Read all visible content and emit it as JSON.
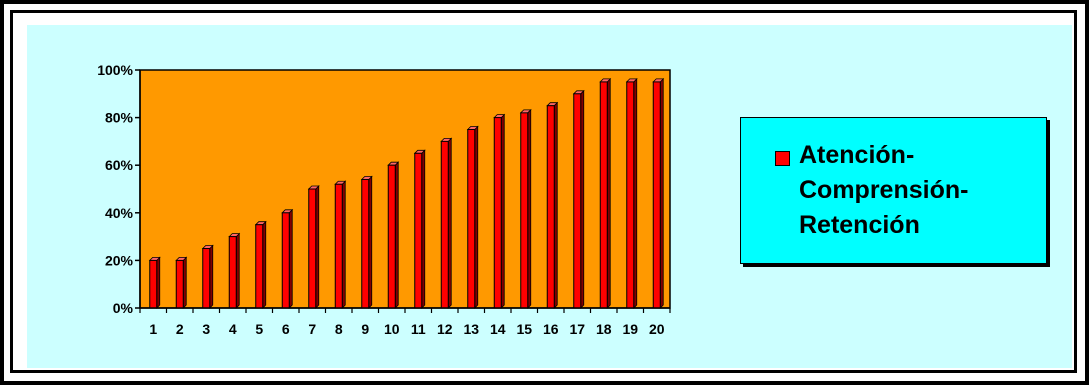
{
  "chart_data": {
    "type": "bar",
    "categories": [
      "1",
      "2",
      "3",
      "4",
      "5",
      "6",
      "7",
      "8",
      "9",
      "10",
      "11",
      "12",
      "13",
      "14",
      "15",
      "16",
      "17",
      "18",
      "19",
      "20"
    ],
    "series": [
      {
        "name": "Atención-Comprensión-Retención",
        "values": [
          20,
          20,
          25,
          30,
          35,
          40,
          50,
          52,
          54,
          60,
          65,
          70,
          75,
          80,
          82,
          85,
          90,
          95,
          95,
          95
        ]
      }
    ],
    "ylim": [
      0,
      100
    ],
    "yticks": [
      "0%",
      "20%",
      "40%",
      "60%",
      "80%",
      "100%"
    ],
    "grid": false,
    "legend_placement": "right",
    "legend_lines": [
      "Atención-",
      "Comprensión-",
      "Retención"
    ],
    "colors": {
      "plot_area": "#ff9900",
      "bar_fill": "#ff0000",
      "bar_shade": "#800000",
      "background": "#ccffff",
      "legend_bg": "#00ffff"
    }
  }
}
